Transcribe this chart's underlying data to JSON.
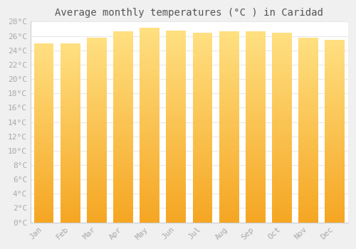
{
  "title": "Average monthly temperatures (°C ) in Caridad",
  "months": [
    "Jan",
    "Feb",
    "Mar",
    "Apr",
    "May",
    "Jun",
    "Jul",
    "Aug",
    "Sep",
    "Oct",
    "Nov",
    "Dec"
  ],
  "values": [
    25.0,
    25.0,
    25.8,
    26.7,
    27.2,
    26.8,
    26.5,
    26.7,
    26.7,
    26.5,
    25.8,
    25.5
  ],
  "bar_color_bottom": "#F5A623",
  "bar_color_top": "#FFE082",
  "ylim": [
    0,
    28
  ],
  "ytick_step": 2,
  "background_color": "#f0f0f0",
  "plot_bg_color": "#ffffff",
  "grid_color": "#e8e8e8",
  "title_fontsize": 10,
  "tick_fontsize": 8,
  "tick_color": "#aaaaaa",
  "title_color": "#555555",
  "font_family": "monospace"
}
